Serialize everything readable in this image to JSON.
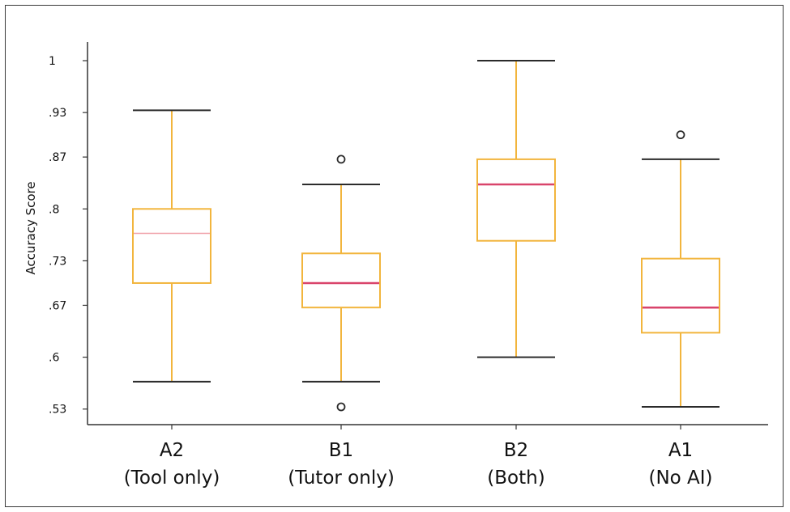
{
  "chart_data": {
    "type": "box",
    "ylabel": "Accuracy Score",
    "ylim": [
      0.5,
      1.02
    ],
    "yticks": [
      {
        "value": 1.0,
        "label": "1"
      },
      {
        "value": 0.93,
        "label": ".93"
      },
      {
        "value": 0.87,
        "label": ".87"
      },
      {
        "value": 0.8,
        "label": ".8"
      },
      {
        "value": 0.73,
        "label": ".73"
      },
      {
        "value": 0.67,
        "label": ".67"
      },
      {
        "value": 0.6,
        "label": ".6"
      },
      {
        "value": 0.53,
        "label": ".53"
      }
    ],
    "grid": false,
    "categories": [
      {
        "code": "A2",
        "desc": "(Tool only)",
        "whisker_low": 0.567,
        "q1": 0.7,
        "median": 0.767,
        "q3": 0.8,
        "whisker_high": 0.933,
        "outliers": [],
        "median_faint": true
      },
      {
        "code": "B1",
        "desc": "(Tutor only)",
        "whisker_low": 0.567,
        "q1": 0.667,
        "median": 0.7,
        "q3": 0.74,
        "whisker_high": 0.833,
        "outliers": [
          0.867,
          0.533
        ],
        "median_faint": false
      },
      {
        "code": "B2",
        "desc": "(Both)",
        "whisker_low": 0.6,
        "q1": 0.757,
        "median": 0.833,
        "q3": 0.867,
        "whisker_high": 1.0,
        "outliers": [],
        "median_faint": false
      },
      {
        "code": "A1",
        "desc": "(No AI)",
        "whisker_low": 0.533,
        "q1": 0.633,
        "median": 0.667,
        "q3": 0.733,
        "whisker_high": 0.867,
        "outliers": [
          0.9
        ],
        "median_faint": false
      }
    ],
    "colors": {
      "box": "#f2b53d",
      "whisker": "#f2b53d",
      "cap": "#2b2b2b",
      "median": "#d9446b",
      "median_faint": "#f0a0a8",
      "outlier": "#2b2b2b",
      "axis": "#333333"
    }
  }
}
